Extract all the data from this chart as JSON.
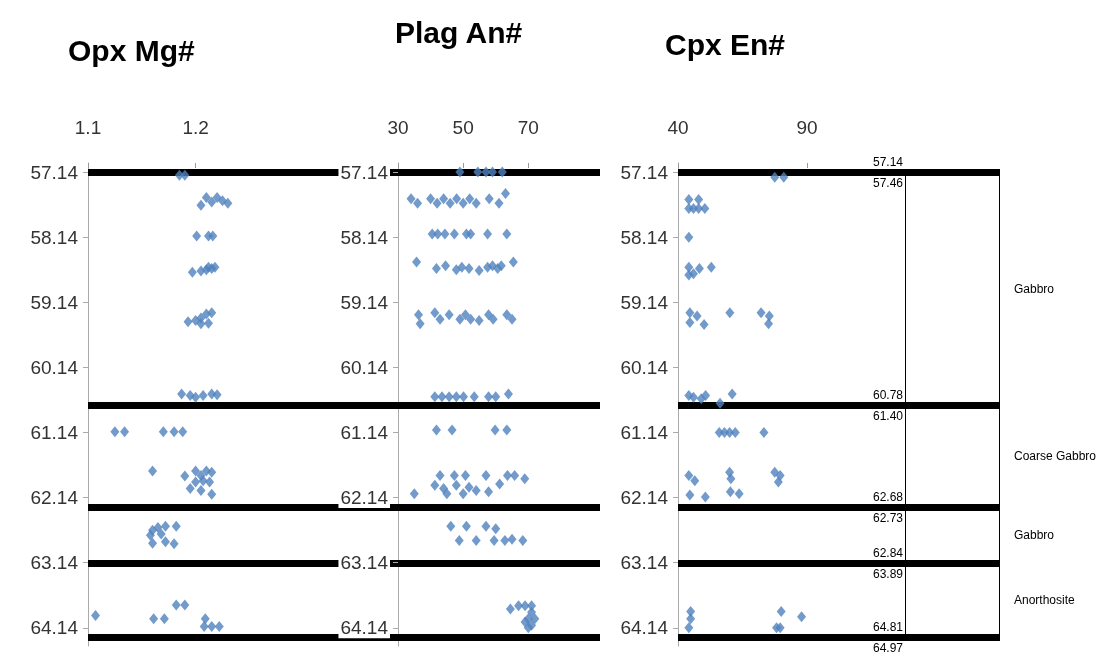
{
  "chart_data": [
    {
      "type": "scatter",
      "title": "Opx Mg#",
      "color": "#4f81bd",
      "marker": "diamond",
      "xlim": [
        1.1,
        1.39
      ],
      "xticks": [
        1.1,
        1.2
      ],
      "ylim": [
        64.42,
        57.0
      ],
      "yticks": [
        57.14,
        58.14,
        59.14,
        60.14,
        61.14,
        62.14,
        63.14,
        64.14
      ],
      "x": [
        1.185,
        1.19,
        1.21,
        1.22,
        1.225,
        1.23,
        1.215,
        1.205,
        1.201,
        1.212,
        1.216,
        1.197,
        1.205,
        1.21,
        1.215,
        1.218,
        1.212,
        1.193,
        1.2,
        1.205,
        1.21,
        1.215,
        1.205,
        1.212,
        1.187,
        1.195,
        1.2,
        1.207,
        1.215,
        1.22,
        1.125,
        1.134,
        1.17,
        1.18,
        1.188,
        1.16,
        1.19,
        1.2,
        1.205,
        1.21,
        1.215,
        1.2,
        1.207,
        1.213,
        1.195,
        1.205,
        1.215,
        1.16,
        1.165,
        1.172,
        1.182,
        1.158,
        1.168,
        1.16,
        1.172,
        1.18,
        1.182,
        1.19,
        1.107,
        1.161,
        1.171,
        1.209,
        1.208,
        1.215,
        1.222
      ],
      "values": [
        57.19,
        57.19,
        57.53,
        57.53,
        57.58,
        57.62,
        57.6,
        57.65,
        58.12,
        58.12,
        58.12,
        58.68,
        58.66,
        58.64,
        58.62,
        58.6,
        58.6,
        59.44,
        59.42,
        59.38,
        59.32,
        59.3,
        59.47,
        59.46,
        60.55,
        60.57,
        60.6,
        60.57,
        60.55,
        60.56,
        61.13,
        61.13,
        61.13,
        61.13,
        61.13,
        61.73,
        61.81,
        61.73,
        61.8,
        61.73,
        61.75,
        61.9,
        61.88,
        61.9,
        62.0,
        62.03,
        62.09,
        62.64,
        62.6,
        62.58,
        62.58,
        62.72,
        62.7,
        62.84,
        62.82,
        62.85,
        63.79,
        63.79,
        63.95,
        64.0,
        64.0,
        64.0,
        64.12,
        64.12,
        64.12
      ],
      "ref_lines": [
        {
          "axis": "y",
          "value": 57.14,
          "color": "#000000"
        },
        {
          "axis": "y",
          "value": 60.72,
          "color": "#000000"
        },
        {
          "axis": "y",
          "value": 62.29,
          "color": "#000000"
        },
        {
          "axis": "y",
          "value": 63.15,
          "color": "#000000"
        },
        {
          "axis": "y",
          "value": 64.28,
          "color": "#000000"
        }
      ]
    },
    {
      "type": "scatter",
      "title": "Plag An#",
      "color": "#4f81bd",
      "marker": "diamond",
      "xlim": [
        30,
        92
      ],
      "xticks": [
        30,
        50,
        70
      ],
      "ylim": [
        64.42,
        57.0
      ],
      "yticks": [
        57.14,
        58.14,
        59.14,
        60.14,
        61.14,
        62.14,
        63.14,
        64.14
      ],
      "x": [
        49,
        54.5,
        57,
        59,
        62,
        34,
        36,
        40,
        42,
        44,
        46,
        48,
        50,
        52,
        54,
        58,
        61,
        63,
        40.5,
        42.2,
        44.4,
        47.3,
        51,
        52.3,
        57.5,
        63.4,
        35.7,
        65.4,
        41.8,
        44.6,
        47.9,
        49.6,
        51.8,
        54.9,
        57.5,
        59,
        60.6,
        61.7,
        36.3,
        41.3,
        42.9,
        45.7,
        49,
        50.7,
        52.3,
        54.9,
        57.8,
        59.2,
        63.4,
        65,
        36.8,
        41.3,
        43.5,
        45.7,
        47.9,
        50.1,
        53.4,
        57.8,
        60,
        63.9,
        41.8,
        46.6,
        59.8,
        63.4,
        42.9,
        47.3,
        50.7,
        57,
        63.6,
        65.8,
        68.9,
        35,
        41.3,
        44,
        47.9,
        51.8,
        54,
        57.8,
        61.2,
        45,
        50,
        46.2,
        51,
        57,
        60,
        48.8,
        54,
        59.5,
        62.8,
        65,
        68.3,
        64.5,
        67,
        69,
        71,
        71,
        70,
        72,
        69,
        71,
        70
      ],
      "values": [
        57.14,
        57.14,
        57.14,
        57.14,
        57.14,
        57.55,
        57.62,
        57.55,
        57.62,
        57.55,
        57.62,
        57.55,
        57.62,
        57.55,
        57.62,
        57.55,
        57.62,
        57.47,
        58.09,
        58.09,
        58.09,
        58.09,
        58.09,
        58.09,
        58.09,
        58.09,
        58.52,
        58.52,
        58.62,
        58.58,
        58.64,
        58.6,
        58.62,
        58.65,
        58.6,
        58.58,
        58.62,
        58.58,
        59.33,
        59.3,
        59.4,
        59.33,
        59.4,
        59.33,
        59.4,
        59.42,
        59.33,
        59.4,
        59.33,
        59.4,
        59.47,
        60.59,
        60.59,
        60.59,
        60.59,
        60.59,
        60.59,
        60.59,
        60.59,
        60.55,
        61.1,
        61.1,
        61.1,
        61.1,
        61.8,
        61.8,
        61.8,
        61.8,
        61.8,
        61.8,
        61.85,
        62.08,
        61.95,
        62.0,
        61.95,
        61.98,
        62.03,
        62.05,
        61.93,
        62.08,
        62.08,
        62.58,
        62.58,
        62.58,
        62.62,
        62.8,
        62.8,
        62.8,
        62.8,
        62.78,
        62.8,
        63.85,
        63.8,
        63.8,
        63.8,
        63.9,
        64.0,
        64.0,
        64.05,
        64.1,
        64.14
      ],
      "ref_lines": [
        {
          "axis": "y",
          "value": 57.14,
          "color": "#000000"
        },
        {
          "axis": "y",
          "value": 60.72,
          "color": "#000000"
        },
        {
          "axis": "y",
          "value": 62.29,
          "color": "#000000"
        },
        {
          "axis": "y",
          "value": 63.15,
          "color": "#000000"
        },
        {
          "axis": "y",
          "value": 64.28,
          "color": "#000000"
        }
      ]
    },
    {
      "type": "scatter",
      "title": "Cpx En#",
      "color": "#4f81bd",
      "marker": "diamond",
      "xlim": [
        40,
        128
      ],
      "xticks": [
        40,
        90
      ],
      "ylim": [
        64.42,
        57.0
      ],
      "yticks": [
        57.14,
        58.14,
        59.14,
        60.14,
        61.14,
        62.14,
        63.14,
        64.14
      ],
      "x": [
        77.5,
        81,
        44.2,
        46,
        48,
        50.4,
        44.2,
        48,
        44.2,
        44.2,
        46,
        48.3,
        44.2,
        52.9,
        44.6,
        44.6,
        47.4,
        50.1,
        60.1,
        72.2,
        75.4,
        75.1,
        44.2,
        46,
        49,
        50.7,
        61,
        56.3,
        56,
        58,
        60,
        62.2,
        73.3,
        44.2,
        46.5,
        44.6,
        50.6,
        60,
        60.5,
        60.3,
        63.7,
        77.5,
        79.6,
        78.9,
        44.9,
        44.9,
        44.2,
        80,
        87.9,
        78.2,
        79.6
      ],
      "values": [
        57.22,
        57.22,
        57.56,
        57.7,
        57.56,
        57.7,
        57.7,
        57.7,
        58.14,
        58.6,
        58.7,
        58.62,
        58.72,
        58.6,
        59.3,
        59.45,
        59.35,
        59.48,
        59.3,
        59.3,
        59.35,
        59.47,
        60.57,
        60.6,
        60.62,
        60.57,
        60.55,
        60.69,
        61.14,
        61.14,
        61.14,
        61.14,
        61.14,
        61.8,
        61.88,
        62.1,
        62.13,
        61.75,
        61.85,
        62.05,
        62.08,
        61.75,
        61.8,
        61.9,
        63.89,
        64.0,
        64.14,
        63.89,
        63.97,
        64.14,
        64.14
      ],
      "ref_lines": [
        {
          "axis": "y",
          "value": 57.14,
          "color": "#000000"
        },
        {
          "axis": "y",
          "value": 60.72,
          "color": "#000000"
        },
        {
          "axis": "y",
          "value": 62.29,
          "color": "#000000"
        },
        {
          "axis": "y",
          "value": 63.15,
          "color": "#000000"
        },
        {
          "axis": "y",
          "value": 64.28,
          "color": "#000000"
        }
      ]
    },
    {
      "type": "other",
      "annotations": [
        "57.14",
        "57.46",
        "Gabbro",
        "60.78",
        "61.40",
        "Coarse Gabbro",
        "62.68",
        "62.73",
        "Gabbro",
        "62.84",
        "63.89",
        "Anorthosite",
        "64.81",
        "64.97"
      ]
    }
  ]
}
